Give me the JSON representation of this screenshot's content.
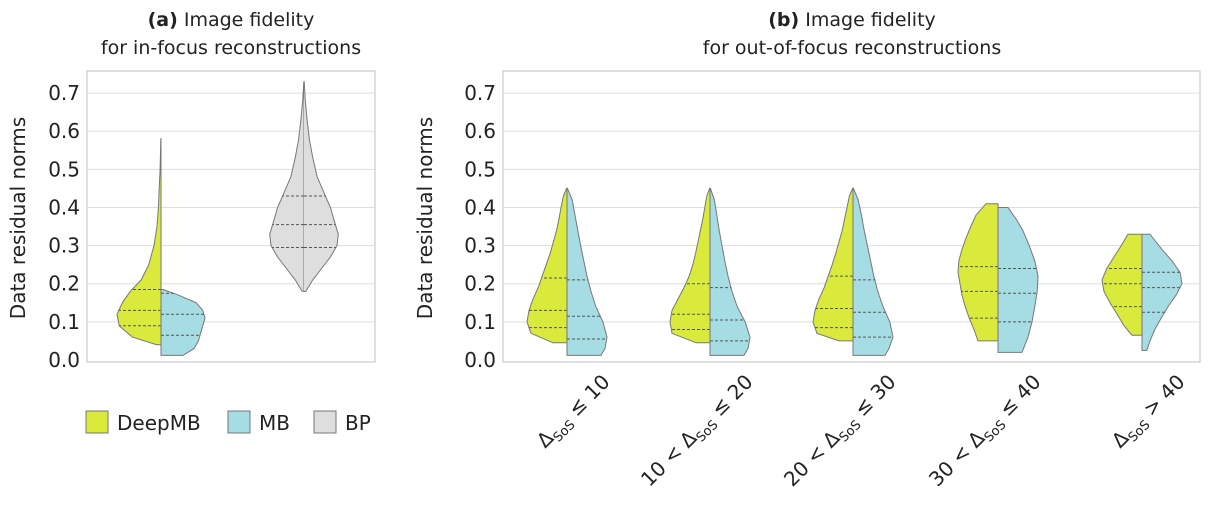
{
  "colors": {
    "DeepMB": "#d9ea3c",
    "MB": "#a6dde4",
    "BP": "#dedede",
    "frame": "#cccccc",
    "grid": "#dddddd",
    "outline": "#777777"
  },
  "chart_data": [
    {
      "type": "violin",
      "title_bold": "(a)",
      "title_line1": "Image fidelity",
      "title_line2": "for in-focus reconstructions",
      "ylabel": "Data residual norms",
      "ylim": [
        0.0,
        0.75
      ],
      "yticks": [
        "0.0",
        "0.1",
        "0.2",
        "0.3",
        "0.4",
        "0.5",
        "0.6",
        "0.7"
      ],
      "grid": true,
      "groups": [
        {
          "split": true,
          "left": {
            "series": "DeepMB",
            "min": 0.04,
            "max": 0.58,
            "quartiles": [
              0.09,
              0.13,
              0.185
            ],
            "density": [
              [
                0.04,
                0.1
              ],
              [
                0.06,
                0.65
              ],
              [
                0.09,
                0.95
              ],
              [
                0.12,
                1.0
              ],
              [
                0.15,
                0.88
              ],
              [
                0.18,
                0.7
              ],
              [
                0.21,
                0.45
              ],
              [
                0.25,
                0.28
              ],
              [
                0.3,
                0.16
              ],
              [
                0.35,
                0.09
              ],
              [
                0.4,
                0.06
              ],
              [
                0.45,
                0.04
              ],
              [
                0.5,
                0.02
              ],
              [
                0.58,
                0.005
              ]
            ]
          },
          "right": {
            "series": "MB",
            "min": 0.012,
            "max": 0.185,
            "quartiles": [
              0.065,
              0.12,
              0.175
            ],
            "density": [
              [
                0.012,
                0.5
              ],
              [
                0.03,
                0.75
              ],
              [
                0.05,
                0.85
              ],
              [
                0.07,
                0.9
              ],
              [
                0.09,
                0.95
              ],
              [
                0.11,
                1.0
              ],
              [
                0.13,
                0.95
              ],
              [
                0.15,
                0.8
              ],
              [
                0.17,
                0.4
              ],
              [
                0.185,
                0.05
              ]
            ]
          }
        },
        {
          "split": false,
          "full": {
            "series": "BP",
            "min": 0.18,
            "max": 0.73,
            "quartiles": [
              0.295,
              0.355,
              0.43
            ],
            "density": [
              [
                0.18,
                0.04
              ],
              [
                0.21,
                0.2
              ],
              [
                0.24,
                0.4
              ],
              [
                0.27,
                0.6
              ],
              [
                0.3,
                0.75
              ],
              [
                0.33,
                0.78
              ],
              [
                0.36,
                0.7
              ],
              [
                0.4,
                0.6
              ],
              [
                0.44,
                0.45
              ],
              [
                0.48,
                0.3
              ],
              [
                0.53,
                0.2
              ],
              [
                0.58,
                0.12
              ],
              [
                0.63,
                0.07
              ],
              [
                0.68,
                0.03
              ],
              [
                0.73,
                0.005
              ]
            ]
          }
        }
      ],
      "legend": [
        "DeepMB",
        "MB",
        "BP"
      ]
    },
    {
      "type": "violin",
      "title_bold": "(b)",
      "title_line1": "Image fidelity",
      "title_line2": "for out-of-focus reconstructions",
      "ylabel": "Data residual norms",
      "ylim": [
        0.0,
        0.75
      ],
      "yticks": [
        "0.0",
        "0.1",
        "0.2",
        "0.3",
        "0.4",
        "0.5",
        "0.6",
        "0.7"
      ],
      "grid": true,
      "categories": [
        "Δ_SoS ≤ 10",
        "10 < Δ_SoS ≤ 20",
        "20 < Δ_SoS ≤ 30",
        "30 < Δ_SoS ≤ 40",
        "Δ_SoS > 40"
      ],
      "category_labels": [
        {
          "pre": "",
          "post": " ≤ 10"
        },
        {
          "pre": "10 < ",
          "post": " ≤ 20"
        },
        {
          "pre": "20 < ",
          "post": " ≤ 30"
        },
        {
          "pre": "30 < ",
          "post": " ≤ 40"
        },
        {
          "pre": "",
          "post": " > 40"
        }
      ],
      "groups": [
        {
          "left": {
            "series": "DeepMB",
            "min": 0.045,
            "max": 0.45,
            "quartiles": [
              0.085,
              0.13,
              0.215
            ],
            "density": [
              [
                0.045,
                0.35
              ],
              [
                0.07,
                0.9
              ],
              [
                0.1,
                1.0
              ],
              [
                0.13,
                0.95
              ],
              [
                0.16,
                0.85
              ],
              [
                0.19,
                0.72
              ],
              [
                0.22,
                0.62
              ],
              [
                0.25,
                0.52
              ],
              [
                0.28,
                0.42
              ],
              [
                0.31,
                0.34
              ],
              [
                0.34,
                0.26
              ],
              [
                0.37,
                0.2
              ],
              [
                0.4,
                0.15
              ],
              [
                0.43,
                0.09
              ],
              [
                0.45,
                0.01
              ]
            ]
          },
          "right": {
            "series": "MB",
            "min": 0.012,
            "max": 0.45,
            "quartiles": [
              0.055,
              0.115,
              0.21
            ],
            "density": [
              [
                0.012,
                0.85
              ],
              [
                0.03,
                0.95
              ],
              [
                0.06,
                1.0
              ],
              [
                0.1,
                0.9
              ],
              [
                0.14,
                0.72
              ],
              [
                0.18,
                0.6
              ],
              [
                0.22,
                0.5
              ],
              [
                0.26,
                0.42
              ],
              [
                0.3,
                0.34
              ],
              [
                0.34,
                0.27
              ],
              [
                0.38,
                0.2
              ],
              [
                0.42,
                0.13
              ],
              [
                0.45,
                0.01
              ]
            ]
          }
        },
        {
          "left": {
            "series": "DeepMB",
            "min": 0.045,
            "max": 0.45,
            "quartiles": [
              0.08,
              0.12,
              0.2
            ],
            "density": [
              [
                0.045,
                0.35
              ],
              [
                0.07,
                0.95
              ],
              [
                0.1,
                1.0
              ],
              [
                0.13,
                0.95
              ],
              [
                0.16,
                0.8
              ],
              [
                0.19,
                0.65
              ],
              [
                0.22,
                0.52
              ],
              [
                0.25,
                0.43
              ],
              [
                0.28,
                0.36
              ],
              [
                0.31,
                0.3
              ],
              [
                0.34,
                0.24
              ],
              [
                0.37,
                0.18
              ],
              [
                0.4,
                0.13
              ],
              [
                0.43,
                0.08
              ],
              [
                0.45,
                0.01
              ]
            ]
          },
          "right": {
            "series": "MB",
            "min": 0.012,
            "max": 0.45,
            "quartiles": [
              0.05,
              0.105,
              0.19
            ],
            "density": [
              [
                0.012,
                0.85
              ],
              [
                0.03,
                0.95
              ],
              [
                0.06,
                1.0
              ],
              [
                0.1,
                0.88
              ],
              [
                0.14,
                0.68
              ],
              [
                0.18,
                0.55
              ],
              [
                0.22,
                0.45
              ],
              [
                0.26,
                0.37
              ],
              [
                0.3,
                0.3
              ],
              [
                0.34,
                0.23
              ],
              [
                0.38,
                0.17
              ],
              [
                0.42,
                0.11
              ],
              [
                0.45,
                0.01
              ]
            ]
          }
        },
        {
          "left": {
            "series": "DeepMB",
            "min": 0.05,
            "max": 0.45,
            "quartiles": [
              0.085,
              0.135,
              0.22
            ],
            "density": [
              [
                0.05,
                0.35
              ],
              [
                0.07,
                0.9
              ],
              [
                0.1,
                1.0
              ],
              [
                0.13,
                0.95
              ],
              [
                0.16,
                0.85
              ],
              [
                0.19,
                0.72
              ],
              [
                0.22,
                0.62
              ],
              [
                0.25,
                0.52
              ],
              [
                0.28,
                0.43
              ],
              [
                0.31,
                0.35
              ],
              [
                0.34,
                0.27
              ],
              [
                0.37,
                0.21
              ],
              [
                0.4,
                0.15
              ],
              [
                0.43,
                0.09
              ],
              [
                0.45,
                0.01
              ]
            ]
          },
          "right": {
            "series": "MB",
            "min": 0.012,
            "max": 0.45,
            "quartiles": [
              0.06,
              0.125,
              0.21
            ],
            "density": [
              [
                0.012,
                0.8
              ],
              [
                0.03,
                0.9
              ],
              [
                0.06,
                1.0
              ],
              [
                0.1,
                0.92
              ],
              [
                0.14,
                0.75
              ],
              [
                0.18,
                0.62
              ],
              [
                0.22,
                0.52
              ],
              [
                0.26,
                0.44
              ],
              [
                0.3,
                0.36
              ],
              [
                0.34,
                0.28
              ],
              [
                0.38,
                0.21
              ],
              [
                0.42,
                0.13
              ],
              [
                0.45,
                0.01
              ]
            ]
          }
        },
        {
          "left": {
            "series": "DeepMB",
            "min": 0.05,
            "max": 0.41,
            "quartiles": [
              0.11,
              0.18,
              0.245
            ],
            "density": [
              [
                0.05,
                0.5
              ],
              [
                0.08,
                0.6
              ],
              [
                0.11,
                0.72
              ],
              [
                0.14,
                0.82
              ],
              [
                0.17,
                0.9
              ],
              [
                0.2,
                0.95
              ],
              [
                0.23,
                1.0
              ],
              [
                0.26,
                0.98
              ],
              [
                0.29,
                0.9
              ],
              [
                0.32,
                0.8
              ],
              [
                0.35,
                0.68
              ],
              [
                0.38,
                0.55
              ],
              [
                0.41,
                0.3
              ]
            ]
          },
          "right": {
            "series": "MB",
            "min": 0.02,
            "max": 0.4,
            "quartiles": [
              0.1,
              0.175,
              0.24
            ],
            "density": [
              [
                0.02,
                0.6
              ],
              [
                0.06,
                0.75
              ],
              [
                0.1,
                0.85
              ],
              [
                0.14,
                0.92
              ],
              [
                0.18,
                0.98
              ],
              [
                0.22,
                1.0
              ],
              [
                0.26,
                0.92
              ],
              [
                0.3,
                0.78
              ],
              [
                0.34,
                0.62
              ],
              [
                0.37,
                0.45
              ],
              [
                0.4,
                0.25
              ]
            ]
          }
        },
        {
          "left": {
            "series": "DeepMB",
            "min": 0.065,
            "max": 0.33,
            "quartiles": [
              0.14,
              0.2,
              0.24
            ],
            "density": [
              [
                0.065,
                0.25
              ],
              [
                0.09,
                0.45
              ],
              [
                0.12,
                0.62
              ],
              [
                0.15,
                0.8
              ],
              [
                0.18,
                0.95
              ],
              [
                0.21,
                1.0
              ],
              [
                0.24,
                0.88
              ],
              [
                0.27,
                0.7
              ],
              [
                0.3,
                0.52
              ],
              [
                0.33,
                0.35
              ]
            ]
          },
          "right": {
            "series": "MB",
            "min": 0.025,
            "max": 0.33,
            "quartiles": [
              0.125,
              0.19,
              0.23
            ],
            "density": [
              [
                0.025,
                0.12
              ],
              [
                0.05,
                0.2
              ],
              [
                0.08,
                0.32
              ],
              [
                0.11,
                0.48
              ],
              [
                0.14,
                0.65
              ],
              [
                0.17,
                0.85
              ],
              [
                0.2,
                1.0
              ],
              [
                0.23,
                0.95
              ],
              [
                0.26,
                0.75
              ],
              [
                0.29,
                0.5
              ],
              [
                0.33,
                0.2
              ]
            ]
          }
        }
      ]
    }
  ]
}
